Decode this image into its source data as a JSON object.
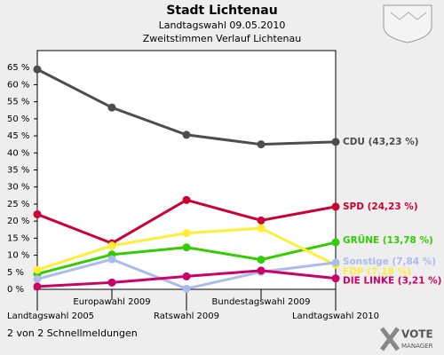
{
  "chart_data": {
    "type": "line",
    "title": "Stadt Lichtenau",
    "subtitle": "Landtagswahl 09.05.2010",
    "subtitle2": "Zweitstimmen Verlauf Lichtenau",
    "footer": "2 von 2 Schnellmeldungen",
    "logo": "VOTE",
    "logo2": "MANAGER",
    "categories": [
      "Landtagswahl 2005",
      "Europawahl 2009",
      "Ratswahl 2009",
      "Bundestagswahl 2009",
      "Landtagswahl 2010"
    ],
    "ylim": [
      0,
      70
    ],
    "yticks": [
      {
        "value": 0,
        "label": "0 %"
      },
      {
        "value": 5,
        "label": "5 %"
      },
      {
        "value": 10,
        "label": "10 %"
      },
      {
        "value": 15,
        "label": "15 %"
      },
      {
        "value": 20,
        "label": "20 %"
      },
      {
        "value": 25,
        "label": "25 %"
      },
      {
        "value": 30,
        "label": "30 %"
      },
      {
        "value": 35,
        "label": "35 %"
      },
      {
        "value": 40,
        "label": "40 %"
      },
      {
        "value": 45,
        "label": "45 %"
      },
      {
        "value": 50,
        "label": "50 %"
      },
      {
        "value": 55,
        "label": "55 %"
      },
      {
        "value": 60,
        "label": "60 %"
      },
      {
        "value": 65,
        "label": "65 %"
      }
    ],
    "series": [
      {
        "name": "CDU (43,23 %)",
        "color": "#4d4d4d",
        "values": [
          64.5,
          53.3,
          45.3,
          42.5,
          43.23
        ]
      },
      {
        "name": "SPD (24,23 %)",
        "color": "#cc0033",
        "values": [
          22,
          13.5,
          26.2,
          20.2,
          24.23
        ]
      },
      {
        "name": "GRÜNE (13,78 %)",
        "color": "#33cc00",
        "values": [
          4.5,
          10.2,
          12.3,
          8.7,
          13.78
        ]
      },
      {
        "name": "FDP (7,18 %)",
        "color": "#ffee33",
        "values": [
          5.7,
          12.8,
          16.5,
          17.9,
          7.18
        ]
      },
      {
        "name": "Sonstige (7,84 %)",
        "color": "#aabbee",
        "values": [
          3,
          8.8,
          0.2,
          5.1,
          7.84
        ]
      },
      {
        "name": "DIE LINKE (3,21 %)",
        "color": "#cc0066",
        "values": [
          0.8,
          2,
          3.8,
          5.5,
          3.21
        ]
      }
    ]
  }
}
